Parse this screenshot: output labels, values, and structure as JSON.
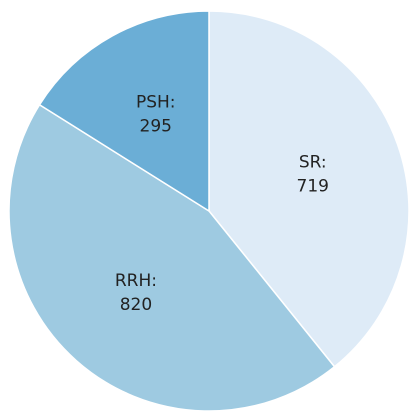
{
  "chart_data": {
    "type": "pie",
    "categories": [
      "SR:",
      "RRH:",
      "PSH:"
    ],
    "values": [
      719,
      820,
      295
    ],
    "colors": [
      "#deebf7",
      "#9ecae1",
      "#6baed6"
    ]
  }
}
